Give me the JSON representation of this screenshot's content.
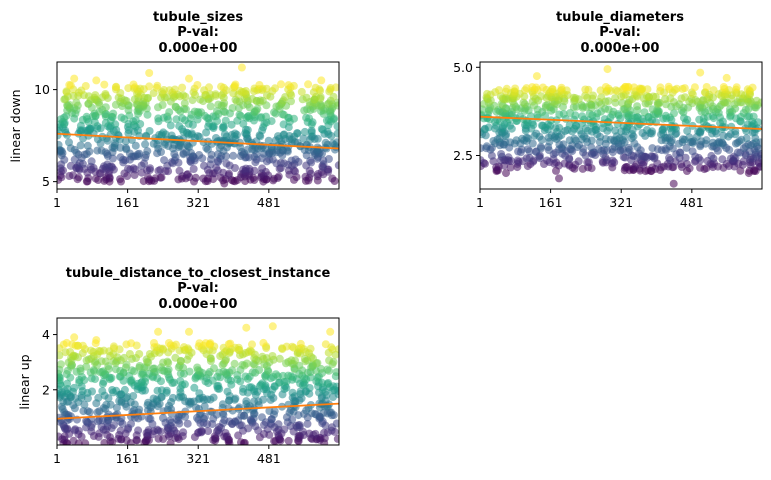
{
  "chart_data": [
    {
      "type": "scatter",
      "title": [
        "tubule_sizes",
        "P-val:",
        "0.000e+00"
      ],
      "ylabel": "linear down",
      "xlim": [
        1,
        640
      ],
      "ylim": [
        4.6,
        11.5
      ],
      "xticks": [
        1,
        161,
        321,
        481
      ],
      "xtick_labels": [
        "1",
        "161",
        "321",
        "481"
      ],
      "yticks": [
        5,
        10
      ],
      "ytick_labels": [
        "5",
        "10"
      ],
      "points": {
        "y_low": 5.0,
        "y_high": 10.3,
        "outliers": [
          [
            210,
            10.9
          ],
          [
            420,
            11.2
          ],
          [
            40,
            10.6
          ],
          [
            90,
            10.5
          ],
          [
            300,
            10.6
          ],
          [
            600,
            10.5
          ],
          [
            120,
            5.0
          ],
          [
            380,
            4.9
          ]
        ]
      },
      "trend": {
        "x": [
          1,
          640
        ],
        "y": [
          7.6,
          6.8
        ]
      },
      "colormap": "viridis",
      "grid": false
    },
    {
      "type": "scatter",
      "title": [
        "tubule_diameters",
        "P-val:",
        "0.000e+00"
      ],
      "ylabel": "",
      "xlim": [
        1,
        640
      ],
      "ylim": [
        1.55,
        5.15
      ],
      "xticks": [
        1,
        161,
        321,
        481
      ],
      "xtick_labels": [
        "1",
        "161",
        "321",
        "481"
      ],
      "yticks": [
        2.5,
        5.0
      ],
      "ytick_labels": [
        "2.5",
        "5.0"
      ],
      "points": {
        "y_low": 2.05,
        "y_high": 4.45,
        "outliers": [
          [
            290,
            4.95
          ],
          [
            500,
            4.85
          ],
          [
            130,
            4.75
          ],
          [
            560,
            4.7
          ],
          [
            440,
            1.7
          ],
          [
            180,
            1.85
          ],
          [
            60,
            2.0
          ],
          [
            610,
            2.0
          ]
        ]
      },
      "trend": {
        "x": [
          1,
          640
        ],
        "y": [
          3.6,
          3.25
        ]
      },
      "colormap": "viridis",
      "grid": false
    },
    {
      "type": "scatter",
      "title": [
        "tubule_distance_to_closest_instance",
        "P-val:",
        "0.000e+00"
      ],
      "ylabel": "linear up",
      "xlim": [
        1,
        640
      ],
      "ylim": [
        0.0,
        4.6
      ],
      "xticks": [
        1,
        161,
        321,
        481
      ],
      "xtick_labels": [
        "1",
        "161",
        "321",
        "481"
      ],
      "yticks": [
        2,
        4
      ],
      "ytick_labels": [
        "2",
        "4"
      ],
      "points": {
        "y_low": 0.05,
        "y_high": 3.7,
        "outliers": [
          [
            40,
            3.9
          ],
          [
            230,
            4.1
          ],
          [
            430,
            4.25
          ],
          [
            490,
            4.3
          ],
          [
            620,
            4.1
          ],
          [
            300,
            4.1
          ],
          [
            90,
            3.8
          ]
        ]
      },
      "trend": {
        "x": [
          1,
          640
        ],
        "y": [
          0.95,
          1.5
        ]
      },
      "colormap": "viridis",
      "grid": false
    }
  ]
}
